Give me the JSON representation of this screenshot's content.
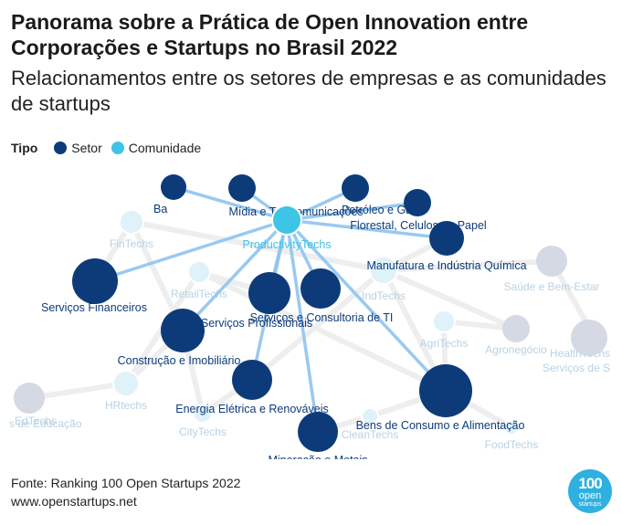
{
  "header": {
    "title": "Panorama sobre a Prática de Open Innovation entre Corporações e Startups no Brasil 2022",
    "subtitle": "Relacionamentos entre os setores de empresas e as comunidades de startups"
  },
  "legend": {
    "title": "Tipo",
    "items": [
      {
        "label": "Setor",
        "color": "#0d3b7a"
      },
      {
        "label": "Comunidade",
        "color": "#3ec4e6"
      }
    ]
  },
  "colors": {
    "setor": "#0d3b7a",
    "comunidade": "#3ec4e6",
    "faded_setor": "#d5d9e3",
    "faded_comunidade": "#dff2f9",
    "faded_label": "#b9d2e2",
    "edge": "#8fc3ee"
  },
  "network": {
    "highlighted": "ProductivityTechs",
    "nodes": [
      {
        "id": "ProductivityTechs",
        "label": "ProductivityTechs",
        "type": "comunidade",
        "highlighted": true
      },
      {
        "id": "Bancos",
        "label": "Ba",
        "type": "setor",
        "highlighted": true
      },
      {
        "id": "Midia",
        "label": "Mídia e Telecomunicações",
        "type": "setor",
        "highlighted": true
      },
      {
        "id": "Petroleo",
        "label": "Petróleo e Gás",
        "type": "setor",
        "highlighted": true
      },
      {
        "id": "Florestal",
        "label": "Florestal, Celulose e Papel",
        "type": "setor",
        "highlighted": true
      },
      {
        "id": "Manufatura",
        "label": "Manufatura e Indústria Química",
        "type": "setor",
        "highlighted": true
      },
      {
        "id": "ServicosFinanceiros",
        "label": "Serviços Financeiros",
        "type": "setor",
        "highlighted": true
      },
      {
        "id": "ServicosProfissionais",
        "label": "Serviços Profissionais",
        "type": "setor",
        "highlighted": true
      },
      {
        "id": "ConsultoriaTI",
        "label": "Serviços e Consultoria de TI",
        "type": "setor",
        "highlighted": true
      },
      {
        "id": "Construcao",
        "label": "Construção e Imobiliário",
        "type": "setor",
        "highlighted": true
      },
      {
        "id": "Energia",
        "label": "Energia Elétrica e Renováveis",
        "type": "setor",
        "highlighted": true
      },
      {
        "id": "BensConsumo",
        "label": "Bens de Consumo e Alimentação",
        "type": "setor",
        "highlighted": true
      },
      {
        "id": "Mineracao",
        "label": "Mineração e Metais",
        "type": "setor",
        "highlighted": true
      },
      {
        "id": "FinTechs",
        "label": "FinTechs",
        "type": "comunidade",
        "highlighted": false
      },
      {
        "id": "RetailTechs",
        "label": "RetailTechs",
        "type": "comunidade",
        "highlighted": false
      },
      {
        "id": "IndTechs",
        "label": "IndTechs",
        "type": "comunidade",
        "highlighted": false
      },
      {
        "id": "AgriTechs",
        "label": "AgriTechs",
        "type": "comunidade",
        "highlighted": false
      },
      {
        "id": "HRtechs",
        "label": "HRtechs",
        "type": "comunidade",
        "highlighted": false
      },
      {
        "id": "EdTechs",
        "label": "EdTechs",
        "type": "comunidade",
        "highlighted": false
      },
      {
        "id": "CityTechs",
        "label": "CityTechs",
        "type": "comunidade",
        "highlighted": false
      },
      {
        "id": "CleanTechs",
        "label": "CleanTechs",
        "type": "comunidade",
        "highlighted": false
      },
      {
        "id": "FoodTechs",
        "label": "FoodTechs",
        "type": "comunidade",
        "highlighted": false
      },
      {
        "id": "HealthTechs",
        "label": "HealthTechs",
        "type": "comunidade",
        "highlighted": false
      },
      {
        "id": "SaudeBemEstar",
        "label": "Saúde e Bem-Estar",
        "type": "setor",
        "highlighted": false
      },
      {
        "id": "Agronegocio",
        "label": "Agronegócio",
        "type": "setor",
        "highlighted": false
      },
      {
        "id": "ServicosSaude",
        "label": "Serviços de S",
        "type": "setor",
        "highlighted": false
      },
      {
        "id": "ServicosEducacao",
        "label": "s de Educação",
        "type": "setor",
        "highlighted": false
      }
    ],
    "edges": [
      {
        "source": "ProductivityTechs",
        "target": "Bancos"
      },
      {
        "source": "ProductivityTechs",
        "target": "Midia"
      },
      {
        "source": "ProductivityTechs",
        "target": "Petroleo"
      },
      {
        "source": "ProductivityTechs",
        "target": "Florestal"
      },
      {
        "source": "ProductivityTechs",
        "target": "Manufatura"
      },
      {
        "source": "ProductivityTechs",
        "target": "ServicosFinanceiros"
      },
      {
        "source": "ProductivityTechs",
        "target": "ServicosProfissionais"
      },
      {
        "source": "ProductivityTechs",
        "target": "ConsultoriaTI"
      },
      {
        "source": "ProductivityTechs",
        "target": "Construcao"
      },
      {
        "source": "ProductivityTechs",
        "target": "Energia"
      },
      {
        "source": "ProductivityTechs",
        "target": "BensConsumo"
      },
      {
        "source": "ProductivityTechs",
        "target": "Mineracao"
      }
    ]
  },
  "footer": {
    "source": "Fonte: Ranking 100 Open Startups 2022",
    "url": "www.openstartups.net"
  },
  "badge": {
    "number": "100",
    "word": "open",
    "word2": "startups"
  }
}
